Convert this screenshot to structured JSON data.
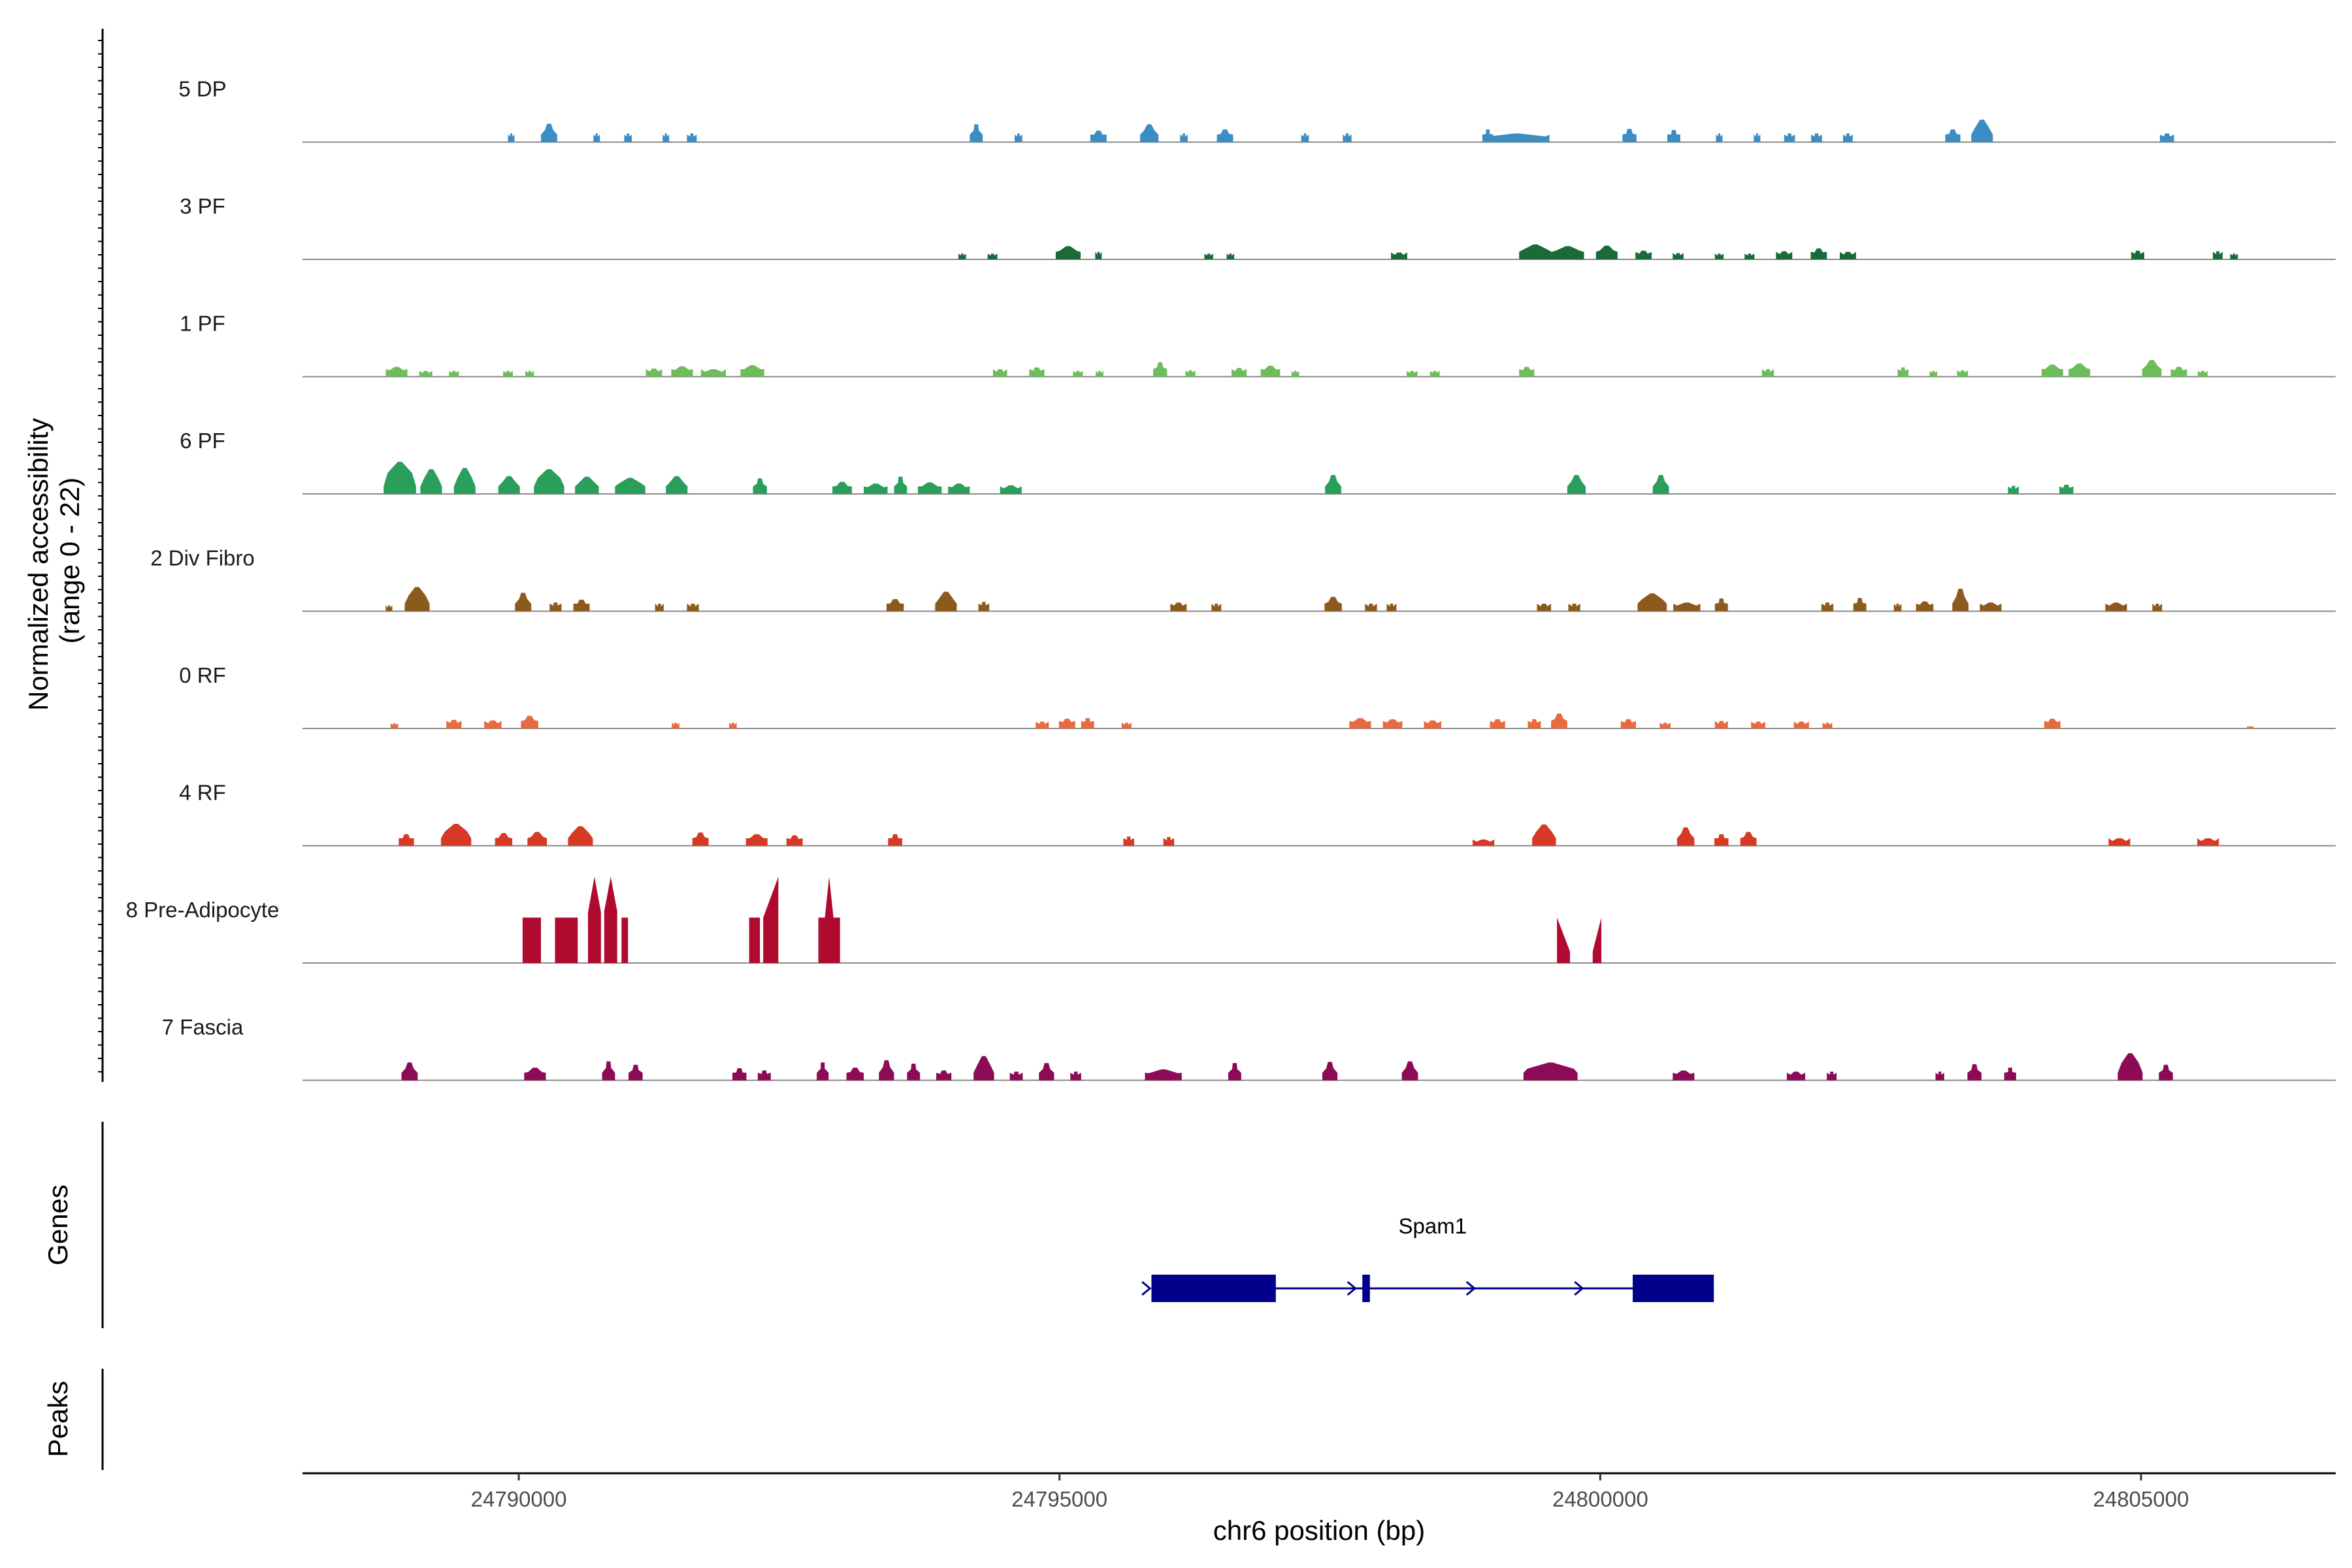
{
  "chart_data": {
    "type": "coverage",
    "ylabel_line1": "Normalized accessibility",
    "ylabel_line2": "(range 0 - 22)",
    "y_range": [
      0,
      22
    ],
    "xlabel": "chr6 position (bp)",
    "x_range": [
      24788000,
      24806800
    ],
    "x_ticks": [
      24790000,
      24795000,
      24800000,
      24805000
    ],
    "x_tick_labels": [
      "24790000",
      "24795000",
      "24800000",
      "24805000"
    ],
    "genes_label": "Genes",
    "peaks_label": "Peaks",
    "gene": {
      "name": "Spam1",
      "start": 24795850,
      "end": 24801050,
      "exons": [
        [
          24795850,
          24797000
        ],
        [
          24797800,
          24797870
        ],
        [
          24800300,
          24801050
        ]
      ],
      "arrows": [
        24795800,
        24797700,
        24798800,
        24799800
      ],
      "color": "#00008b"
    },
    "tracks": [
      {
        "name": "5 DP",
        "color": "#3a8ec4",
        "peaks": [
          [
            24789930,
            60,
            1.5
          ],
          [
            24790280,
            150,
            3.2
          ],
          [
            24790720,
            60,
            1.5
          ],
          [
            24791010,
            70,
            1.5
          ],
          [
            24791360,
            60,
            1.5
          ],
          [
            24791600,
            90,
            1.5
          ],
          [
            24794230,
            120,
            3.1
          ],
          [
            24794620,
            70,
            1.5
          ],
          [
            24795360,
            150,
            2
          ],
          [
            24795830,
            170,
            3.1
          ],
          [
            24796150,
            70,
            1.5
          ],
          [
            24796530,
            150,
            2.2
          ],
          [
            24797270,
            70,
            1.5
          ],
          [
            24797660,
            80,
            1.5
          ],
          [
            24798960,
            100,
            2.2
          ],
          [
            24799230,
            600,
            1.5
          ],
          [
            24800270,
            130,
            2.3
          ],
          [
            24800680,
            120,
            2.1
          ],
          [
            24801100,
            60,
            1.5
          ],
          [
            24801450,
            60,
            1.5
          ],
          [
            24801750,
            100,
            1.5
          ],
          [
            24802000,
            100,
            1.5
          ],
          [
            24802290,
            90,
            1.5
          ],
          [
            24803260,
            140,
            2.2
          ],
          [
            24803530,
            200,
            3.9
          ],
          [
            24805240,
            130,
            1.5
          ]
        ]
      },
      {
        "name": "3 PF",
        "color": "#1a6a3a",
        "peaks": [
          [
            24794100,
            70,
            1
          ],
          [
            24794380,
            90,
            1
          ],
          [
            24795080,
            230,
            2.3
          ],
          [
            24795360,
            60,
            1.3
          ],
          [
            24796380,
            80,
            1
          ],
          [
            24796580,
            70,
            1
          ],
          [
            24798140,
            150,
            1.2
          ],
          [
            24799400,
            300,
            2.6
          ],
          [
            24799700,
            300,
            2.3
          ],
          [
            24800060,
            200,
            2.4
          ],
          [
            24800400,
            150,
            1.5
          ],
          [
            24800720,
            100,
            1.1
          ],
          [
            24801100,
            80,
            1
          ],
          [
            24801380,
            90,
            1
          ],
          [
            24801700,
            150,
            1.4
          ],
          [
            24802020,
            150,
            1.9
          ],
          [
            24802290,
            150,
            1.3
          ],
          [
            24804970,
            120,
            1.5
          ],
          [
            24805710,
            90,
            1.4
          ],
          [
            24805860,
            70,
            1
          ]
        ]
      },
      {
        "name": "1 PF",
        "color": "#6ebd5c",
        "peaks": [
          [
            24788870,
            200,
            1.7
          ],
          [
            24789140,
            120,
            1
          ],
          [
            24789400,
            90,
            1
          ],
          [
            24789900,
            90,
            1
          ],
          [
            24790100,
            80,
            1
          ],
          [
            24791250,
            150,
            1.4
          ],
          [
            24791510,
            200,
            1.8
          ],
          [
            24791800,
            230,
            1.3
          ],
          [
            24792160,
            220,
            2
          ],
          [
            24794450,
            130,
            1.3
          ],
          [
            24794790,
            140,
            1.6
          ],
          [
            24795170,
            90,
            1
          ],
          [
            24795370,
            70,
            1
          ],
          [
            24795930,
            130,
            2.5
          ],
          [
            24796210,
            90,
            1.1
          ],
          [
            24796660,
            140,
            1.5
          ],
          [
            24796950,
            180,
            1.9
          ],
          [
            24797180,
            70,
            1
          ],
          [
            24798260,
            100,
            1
          ],
          [
            24798470,
            90,
            1
          ],
          [
            24799320,
            140,
            1.7
          ],
          [
            24801550,
            110,
            1.3
          ],
          [
            24802800,
            100,
            1.6
          ],
          [
            24803080,
            70,
            1
          ],
          [
            24803350,
            100,
            1.1
          ],
          [
            24804180,
            200,
            2.1
          ],
          [
            24804430,
            200,
            2.3
          ],
          [
            24805100,
            180,
            2.9
          ],
          [
            24805350,
            150,
            1.7
          ],
          [
            24805570,
            90,
            1
          ]
        ]
      },
      {
        "name": "6 PF",
        "color": "#2a9f5c",
        "peaks": [
          [
            24788900,
            300,
            5.6
          ],
          [
            24789190,
            200,
            4.3
          ],
          [
            24789500,
            200,
            4.5
          ],
          [
            24789910,
            200,
            3.1
          ],
          [
            24790280,
            280,
            4.3
          ],
          [
            24790630,
            220,
            3
          ],
          [
            24791030,
            280,
            2.8
          ],
          [
            24791460,
            200,
            3.1
          ],
          [
            24792230,
            130,
            2.7
          ],
          [
            24792990,
            180,
            2.1
          ],
          [
            24793300,
            220,
            1.8
          ],
          [
            24793530,
            120,
            3
          ],
          [
            24793800,
            220,
            2
          ],
          [
            24794070,
            200,
            1.8
          ],
          [
            24794550,
            200,
            1.5
          ],
          [
            24797530,
            150,
            3.3
          ],
          [
            24799780,
            170,
            3.3
          ],
          [
            24800560,
            150,
            3.3
          ],
          [
            24803820,
            100,
            1.4
          ],
          [
            24804310,
            130,
            1.6
          ]
        ]
      },
      {
        "name": "2 Div Fibro",
        "color": "#8b5a1c",
        "peaks": [
          [
            24788800,
            60,
            1
          ],
          [
            24789060,
            230,
            4.2
          ],
          [
            24790040,
            150,
            3.2
          ],
          [
            24790340,
            110,
            1.5
          ],
          [
            24790580,
            150,
            2
          ],
          [
            24791300,
            80,
            1.3
          ],
          [
            24791610,
            110,
            1.3
          ],
          [
            24793480,
            160,
            2.1
          ],
          [
            24793950,
            200,
            3.4
          ],
          [
            24794300,
            100,
            1.6
          ],
          [
            24796100,
            150,
            1.5
          ],
          [
            24796450,
            90,
            1.3
          ],
          [
            24797530,
            160,
            2.5
          ],
          [
            24797880,
            110,
            1.3
          ],
          [
            24798070,
            90,
            1.3
          ],
          [
            24799480,
            130,
            1.3
          ],
          [
            24799760,
            110,
            1.3
          ],
          [
            24800480,
            270,
            3.1
          ],
          [
            24800800,
            250,
            1.5
          ],
          [
            24801120,
            120,
            2.2
          ],
          [
            24802100,
            110,
            1.5
          ],
          [
            24802400,
            120,
            2.3
          ],
          [
            24802750,
            70,
            1.3
          ],
          [
            24803000,
            160,
            1.7
          ],
          [
            24803330,
            150,
            3.9
          ],
          [
            24803610,
            200,
            1.5
          ],
          [
            24804770,
            200,
            1.5
          ],
          [
            24805150,
            90,
            1.3
          ]
        ]
      },
      {
        "name": "0 RF",
        "color": "#e86a3e",
        "peaks": [
          [
            24788850,
            70,
            0.9
          ],
          [
            24789400,
            140,
            1.5
          ],
          [
            24789760,
            160,
            1.4
          ],
          [
            24790100,
            160,
            2.2
          ],
          [
            24791450,
            70,
            1
          ],
          [
            24791980,
            70,
            1
          ],
          [
            24794840,
            120,
            1.2
          ],
          [
            24795070,
            150,
            1.7
          ],
          [
            24795260,
            120,
            1.8
          ],
          [
            24795620,
            90,
            1
          ],
          [
            24797780,
            200,
            1.8
          ],
          [
            24798080,
            180,
            1.6
          ],
          [
            24798450,
            160,
            1.4
          ],
          [
            24799050,
            140,
            1.6
          ],
          [
            24799390,
            120,
            1.6
          ],
          [
            24799620,
            150,
            2.6
          ],
          [
            24800260,
            140,
            1.6
          ],
          [
            24800600,
            100,
            1
          ],
          [
            24801120,
            120,
            1.3
          ],
          [
            24801460,
            130,
            1.2
          ],
          [
            24801860,
            140,
            1.2
          ],
          [
            24802100,
            90,
            1
          ],
          [
            24804180,
            150,
            1.7
          ],
          [
            24806010,
            60,
            0.4
          ]
        ]
      },
      {
        "name": "4 RF",
        "color": "#d63a24",
        "peaks": [
          [
            24788960,
            140,
            2
          ],
          [
            24789420,
            280,
            3.8
          ],
          [
            24789860,
            160,
            2.2
          ],
          [
            24790170,
            180,
            2.4
          ],
          [
            24790570,
            230,
            3.4
          ],
          [
            24791680,
            150,
            2.3
          ],
          [
            24792200,
            200,
            2
          ],
          [
            24792550,
            150,
            1.8
          ],
          [
            24793480,
            130,
            2
          ],
          [
            24795640,
            100,
            1.6
          ],
          [
            24796010,
            100,
            1.5
          ],
          [
            24798920,
            200,
            1.1
          ],
          [
            24799480,
            220,
            3.7
          ],
          [
            24800790,
            160,
            3.2
          ],
          [
            24801120,
            130,
            2
          ],
          [
            24801370,
            150,
            2.4
          ],
          [
            24804800,
            200,
            1.3
          ],
          [
            24805620,
            200,
            1.3
          ]
        ]
      },
      {
        "name": "8 Pre-Adipocyte",
        "color": "#b00a2e",
        "peaks": [
          [
            24790120,
            170,
            0,
            "flat",
            7.9,
            7.9
          ],
          [
            24790440,
            210,
            0,
            "flat",
            7.9,
            7.9
          ],
          [
            24790660,
            40,
            0,
            "flat",
            7.9,
            7.9
          ],
          [
            24790700,
            120,
            0,
            "spike",
            8.8,
            15
          ],
          [
            24790850,
            120,
            0,
            "spike",
            9,
            15
          ],
          [
            24790980,
            60,
            0,
            "flat",
            7.9,
            7.9
          ],
          [
            24792180,
            100,
            0,
            "flat",
            7.9,
            7.9
          ],
          [
            24792330,
            140,
            0,
            "ramp",
            7.9,
            15
          ],
          [
            24792870,
            200,
            0,
            "sat",
            7.9,
            15
          ],
          [
            24799660,
            120,
            0,
            "ramp",
            7.9,
            2
          ],
          [
            24799970,
            80,
            0,
            "ramp",
            2,
            7.9
          ]
        ]
      },
      {
        "name": "7 Fascia",
        "color": "#8c0a56",
        "peaks": [
          [
            24788990,
            150,
            3.1
          ],
          [
            24790150,
            200,
            2.2
          ],
          [
            24790830,
            120,
            3.3
          ],
          [
            24791080,
            130,
            2.7
          ],
          [
            24792040,
            130,
            2.1
          ],
          [
            24792270,
            120,
            1.7
          ],
          [
            24792810,
            110,
            3.1
          ],
          [
            24793110,
            160,
            2.2
          ],
          [
            24793400,
            140,
            3.5
          ],
          [
            24793650,
            120,
            2.9
          ],
          [
            24793930,
            140,
            1.7
          ],
          [
            24794300,
            190,
            4.2
          ],
          [
            24794600,
            120,
            1.5
          ],
          [
            24794880,
            140,
            3
          ],
          [
            24795150,
            100,
            1.5
          ],
          [
            24795960,
            340,
            1.9
          ],
          [
            24796620,
            120,
            3
          ],
          [
            24797500,
            140,
            3.2
          ],
          [
            24798240,
            150,
            3.3
          ],
          [
            24799540,
            500,
            3.1
          ],
          [
            24800770,
            200,
            1.7
          ],
          [
            24801810,
            170,
            1.5
          ],
          [
            24802140,
            90,
            1.5
          ],
          [
            24803140,
            80,
            1.5
          ],
          [
            24803460,
            130,
            2.8
          ],
          [
            24803790,
            110,
            2.2
          ],
          [
            24804900,
            230,
            4.7
          ],
          [
            24805230,
            130,
            2.7
          ]
        ]
      }
    ]
  }
}
